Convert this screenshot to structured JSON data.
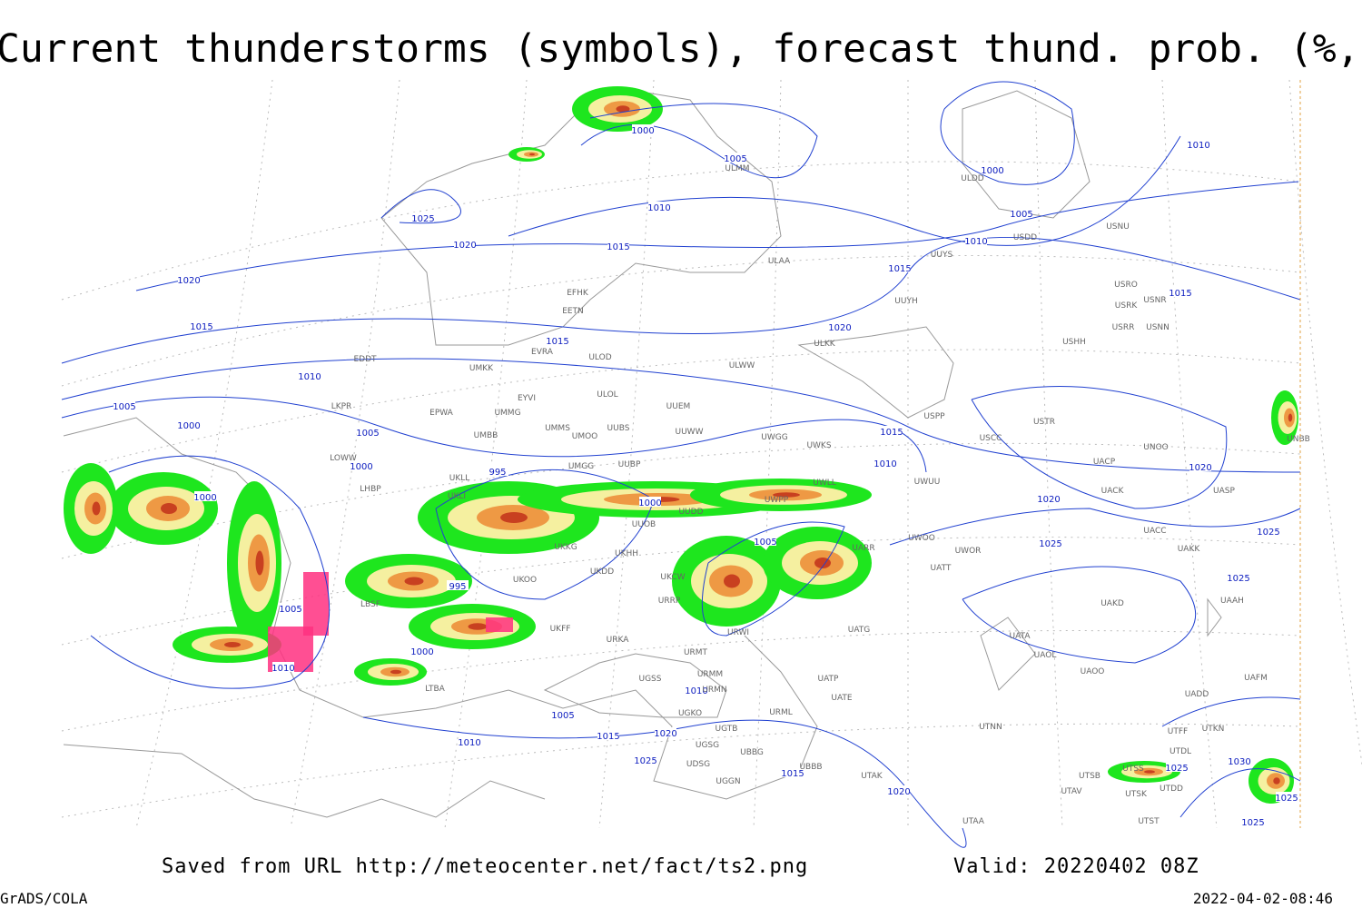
{
  "header": {
    "title": "Current thunderstorms (symbols), forecast thund. prob. (%, shaded)"
  },
  "footer": {
    "source": "Saved from URL http://meteocenter.net/fact/ts2.png",
    "valid": "Valid: 20220402 08Z",
    "software": "GrADS/COLA",
    "timestamp": "2022-04-02-08:46"
  },
  "isobar_labels": [
    "1000",
    "1005",
    "1010",
    "1015",
    "1020",
    "1025",
    "1020",
    "1015",
    "1010",
    "1005",
    "1000",
    "1005",
    "1000",
    "1000",
    "995",
    "1000",
    "1005",
    "995",
    "1005",
    "1010",
    "1000",
    "1005",
    "1015",
    "1020",
    "1010",
    "1025",
    "1015",
    "1020",
    "1010",
    "1015",
    "1020",
    "1015",
    "1010",
    "1005",
    "1000",
    "1010",
    "1015",
    "1020",
    "1020",
    "1025",
    "1025",
    "1025",
    "1015",
    "1010",
    "1030",
    "1025",
    "1025",
    "1025"
  ],
  "stations": [
    "ULMM",
    "ULDD",
    "USDD",
    "USNU",
    "ULAA",
    "UUYS",
    "UUYH",
    "USRO",
    "USRK",
    "USNR",
    "USRR",
    "USNN",
    "USHH",
    "ULKK",
    "ULWW",
    "EFHK",
    "EETN",
    "EVRA",
    "ULOD",
    "UMKK",
    "EDDT",
    "EYVI",
    "ULOL",
    "UUEM",
    "LKPR",
    "EPWA",
    "UMMG",
    "UMMS",
    "UMOO",
    "UUBS",
    "UUWW",
    "UWGG",
    "UWKS",
    "USPP",
    "USTR",
    "USCC",
    "UNOO",
    "UNBB",
    "UMBB",
    "LOWW",
    "LHBP",
    "UKLL",
    "UKLI",
    "UMGG",
    "UUBP",
    "UWLL",
    "UWUU",
    "UACP",
    "UACK",
    "UASP",
    "UWPP",
    "UUDD",
    "UUOB",
    "UWOO",
    "UWOR",
    "UACC",
    "UAKK",
    "UKKG",
    "UKHH",
    "UKDD",
    "UKOO",
    "UKCW",
    "UATT",
    "UARR",
    "UAKD",
    "UAAH",
    "LBSF",
    "URRP",
    "UKFF",
    "URKA",
    "URMT",
    "URWI",
    "UATG",
    "UATA",
    "UAOL",
    "UAOO",
    "UAFM",
    "LTBA",
    "UBBB",
    "UGSS",
    "URMM",
    "URMN",
    "UATP",
    "UATE",
    "URML",
    "UADD",
    "UGKO",
    "UGTB",
    "UTNN",
    "UTFF",
    "UTKN",
    "UTDL",
    "UGSG",
    "UBBG",
    "UDSG",
    "UGGN",
    "UTAK",
    "UTSS",
    "UTSB",
    "UTAV",
    "UTSK",
    "UTDD",
    "UTAA",
    "UTST"
  ]
}
